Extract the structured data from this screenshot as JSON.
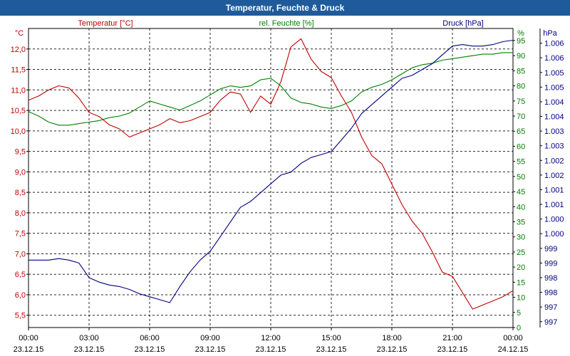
{
  "window": {
    "title": "Temperatur, Feuchte & Druck"
  },
  "chart_data": {
    "type": "line",
    "title": "Temperatur, Feuchte & Druck",
    "x_ticks": [
      {
        "time": "00:00",
        "date": "23.12.15"
      },
      {
        "time": "03:00",
        "date": "23.12.15"
      },
      {
        "time": "06:00",
        "date": "23.12.15"
      },
      {
        "time": "09:00",
        "date": "23.12.15"
      },
      {
        "time": "12:00",
        "date": "23.12.15"
      },
      {
        "time": "15:00",
        "date": "23.12.15"
      },
      {
        "time": "18:00",
        "date": "23.12.15"
      },
      {
        "time": "21:00",
        "date": "23.12.15"
      },
      {
        "time": "00:00",
        "date": "24.12.15"
      }
    ],
    "x_range_hours": [
      0,
      24
    ],
    "axes": {
      "left": {
        "unit": "°C",
        "label": "Temperatur [°C]",
        "color": "#c00000",
        "ylim": [
          5.2,
          12.5
        ],
        "ticks": [
          {
            "v": 5.5,
            "label": "5,5"
          },
          {
            "v": 6.0,
            "label": "6,0"
          },
          {
            "v": 6.5,
            "label": "6,5"
          },
          {
            "v": 7.0,
            "label": "7,0"
          },
          {
            "v": 7.5,
            "label": "7,5"
          },
          {
            "v": 8.0,
            "label": "8,0"
          },
          {
            "v": 8.5,
            "label": "8,5"
          },
          {
            "v": 9.0,
            "label": "9,0"
          },
          {
            "v": 9.5,
            "label": "9,5"
          },
          {
            "v": 10.0,
            "label": "10,0"
          },
          {
            "v": 10.5,
            "label": "10,5"
          },
          {
            "v": 11.0,
            "label": "11,0"
          },
          {
            "v": 11.5,
            "label": "11,5"
          },
          {
            "v": 12.0,
            "label": "12,0"
          }
        ]
      },
      "right1": {
        "unit": "%",
        "label": "rel. Feuchte [%]",
        "color": "#008000",
        "ylim": [
          0,
          99
        ],
        "ticks": [
          {
            "v": 0,
            "label": "0"
          },
          {
            "v": 5,
            "label": "5"
          },
          {
            "v": 10,
            "label": "10"
          },
          {
            "v": 15,
            "label": "15"
          },
          {
            "v": 20,
            "label": "20"
          },
          {
            "v": 25,
            "label": "25"
          },
          {
            "v": 30,
            "label": "30"
          },
          {
            "v": 35,
            "label": "35"
          },
          {
            "v": 40,
            "label": "40"
          },
          {
            "v": 45,
            "label": "45"
          },
          {
            "v": 50,
            "label": "50"
          },
          {
            "v": 55,
            "label": "55"
          },
          {
            "v": 60,
            "label": "60"
          },
          {
            "v": 65,
            "label": "65"
          },
          {
            "v": 70,
            "label": "70"
          },
          {
            "v": 75,
            "label": "75"
          },
          {
            "v": 80,
            "label": "80"
          },
          {
            "v": 85,
            "label": "85"
          },
          {
            "v": 90,
            "label": "90"
          },
          {
            "v": 95,
            "label": "95"
          }
        ]
      },
      "right2": {
        "unit": "hPa",
        "label": "Druck [hPa]",
        "color": "#000080",
        "ylim": [
          996.5,
          1006.7
        ],
        "ticks": [
          {
            "v": 996.7,
            "label": "997"
          },
          {
            "v": 997.2,
            "label": "997"
          },
          {
            "v": 997.7,
            "label": "998"
          },
          {
            "v": 998.2,
            "label": "998"
          },
          {
            "v": 998.7,
            "label": "999"
          },
          {
            "v": 999.2,
            "label": "999"
          },
          {
            "v": 999.7,
            "label": "1.000"
          },
          {
            "v": 1000.2,
            "label": "1.000"
          },
          {
            "v": 1000.7,
            "label": "1.001"
          },
          {
            "v": 1001.2,
            "label": "1.001"
          },
          {
            "v": 1001.7,
            "label": "1.002"
          },
          {
            "v": 1002.2,
            "label": "1.002"
          },
          {
            "v": 1002.7,
            "label": "1.003"
          },
          {
            "v": 1003.2,
            "label": "1.003"
          },
          {
            "v": 1003.7,
            "label": "1.004"
          },
          {
            "v": 1004.2,
            "label": "1.004"
          },
          {
            "v": 1004.7,
            "label": "1.005"
          },
          {
            "v": 1005.2,
            "label": "1.005"
          },
          {
            "v": 1005.7,
            "label": "1.006"
          },
          {
            "v": 1006.2,
            "label": "1.006"
          }
        ]
      }
    },
    "series": [
      {
        "name": "Temperatur [°C]",
        "axis": "left",
        "color": "#c00000",
        "x": [
          0,
          0.5,
          1,
          1.5,
          2,
          2.5,
          3,
          3.5,
          4,
          4.5,
          5,
          5.5,
          6,
          6.5,
          7,
          7.5,
          8,
          8.5,
          9,
          9.5,
          10,
          10.5,
          11,
          11.5,
          12,
          12.5,
          13,
          13.5,
          14,
          14.5,
          15,
          15.5,
          16,
          16.5,
          17,
          17.5,
          18,
          18.5,
          19,
          19.5,
          20,
          20.5,
          21,
          21.5,
          22,
          22.5,
          23,
          23.5,
          24
        ],
        "values": [
          10.75,
          10.85,
          11.0,
          11.1,
          11.05,
          10.8,
          10.45,
          10.35,
          10.15,
          10.05,
          9.85,
          9.95,
          10.05,
          10.15,
          10.3,
          10.2,
          10.25,
          10.35,
          10.45,
          10.75,
          10.95,
          10.9,
          10.45,
          10.85,
          10.65,
          11.2,
          12.05,
          12.25,
          11.75,
          11.45,
          11.3,
          10.85,
          10.45,
          9.85,
          9.4,
          9.2,
          8.7,
          8.2,
          7.8,
          7.5,
          7.05,
          6.55,
          6.45,
          6.05,
          5.65,
          5.75,
          5.85,
          5.95,
          6.1
        ]
      },
      {
        "name": "rel. Feuchte [%]",
        "axis": "right1",
        "color": "#008000",
        "x": [
          0,
          0.5,
          1,
          1.5,
          2,
          2.5,
          3,
          3.5,
          4,
          4.5,
          5,
          5.5,
          6,
          6.5,
          7,
          7.5,
          8,
          8.5,
          9,
          9.5,
          10,
          10.5,
          11,
          11.5,
          12,
          12.5,
          13,
          13.5,
          14,
          14.5,
          15,
          15.5,
          16,
          16.5,
          17,
          17.5,
          18,
          18.5,
          19,
          19.5,
          20,
          20.5,
          21,
          21.5,
          22,
          22.5,
          23,
          23.5,
          24
        ],
        "values": [
          71.5,
          70,
          68,
          67,
          67,
          67.5,
          68,
          68.5,
          69.5,
          70,
          71,
          73,
          75,
          74,
          73,
          72,
          73.5,
          75,
          77,
          79,
          80,
          79.5,
          80,
          82,
          82.5,
          80,
          76,
          74.5,
          74,
          73,
          72.5,
          73.5,
          75,
          78,
          79.5,
          80.5,
          82,
          84,
          86,
          87,
          87.5,
          88.5,
          89,
          89.5,
          90,
          90.5,
          90.5,
          91,
          91
        ]
      },
      {
        "name": "Druck [hPa]",
        "axis": "right2",
        "color": "#000080",
        "x": [
          0,
          0.5,
          1,
          1.5,
          2,
          2.5,
          3,
          3.5,
          4,
          4.5,
          5,
          5.5,
          6,
          6.5,
          7,
          7.5,
          8,
          8.5,
          9,
          9.5,
          10,
          10.5,
          11,
          11.5,
          12,
          12.5,
          13,
          13.5,
          14,
          14.5,
          15,
          15.5,
          16,
          16.5,
          17,
          17.5,
          18,
          18.5,
          19,
          19.5,
          20,
          20.5,
          21,
          21.5,
          22,
          22.5,
          23,
          23.5,
          24
        ],
        "values": [
          998.8,
          998.8,
          998.8,
          998.85,
          998.8,
          998.7,
          998.2,
          998.05,
          997.95,
          997.9,
          997.8,
          997.65,
          997.55,
          997.45,
          997.35,
          997.9,
          998.4,
          998.8,
          999.1,
          999.6,
          1000.1,
          1000.6,
          1000.8,
          1001.1,
          1001.4,
          1001.7,
          1001.8,
          1002.1,
          1002.3,
          1002.4,
          1002.5,
          1002.9,
          1003.3,
          1003.8,
          1004.1,
          1004.4,
          1004.7,
          1005.0,
          1005.1,
          1005.3,
          1005.5,
          1005.8,
          1006.1,
          1006.15,
          1006.1,
          1006.1,
          1006.15,
          1006.25,
          1006.3
        ]
      }
    ],
    "grid": true,
    "legend": "top-headers"
  }
}
